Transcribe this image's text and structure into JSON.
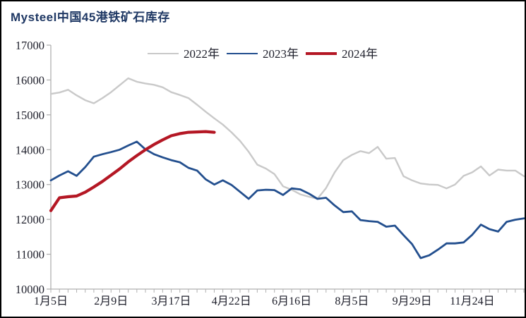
{
  "window": {
    "title": "Mysteel中国45港铁矿石库存"
  },
  "style": {
    "background": "#ffffff",
    "border_color": "#000000",
    "title_color": "#1f3864",
    "axis_color": "#b0b0b0",
    "label_color": "#1d1e2a"
  },
  "chart_data": {
    "type": "line",
    "title": "Mysteel中国45港铁矿石库存",
    "xlabel": "",
    "ylabel": "",
    "ylim": [
      10000,
      17000
    ],
    "y_ticks": [
      "10000",
      "11000",
      "12000",
      "13000",
      "14000",
      "15000",
      "16000",
      "17000"
    ],
    "y_tick_values": [
      10000,
      11000,
      12000,
      13000,
      14000,
      15000,
      16000,
      17000
    ],
    "x_tick_labels": [
      "1月5日",
      "2月9日",
      "3月17日",
      "4月22日",
      "6月16日",
      "8月5日",
      "9月29日",
      "11月24日"
    ],
    "x_tick_indices": [
      0,
      7,
      14,
      21,
      28,
      35,
      42,
      49
    ],
    "n_categories": 56,
    "grid": false,
    "legend_position": "top-center",
    "series": [
      {
        "name": "2022年",
        "color": "#c9c9c9",
        "stroke_width": 2.4,
        "values": [
          15600,
          15640,
          15720,
          15560,
          15420,
          15330,
          15480,
          15650,
          15850,
          16050,
          15950,
          15900,
          15860,
          15790,
          15650,
          15570,
          15480,
          15290,
          15090,
          14900,
          14720,
          14500,
          14250,
          13940,
          13570,
          13460,
          13300,
          12950,
          12850,
          12720,
          12650,
          12590,
          12900,
          13350,
          13700,
          13850,
          13960,
          13900,
          14080,
          13740,
          13760,
          13240,
          13120,
          13030,
          13000,
          12990,
          12890,
          13000,
          13250,
          13350,
          13520,
          13260,
          13430,
          13400,
          13400,
          13240
        ]
      },
      {
        "name": "2023年",
        "color": "#234f8e",
        "stroke_width": 2.8,
        "values": [
          13120,
          13260,
          13380,
          13250,
          13500,
          13800,
          13870,
          13930,
          14000,
          14120,
          14230,
          14010,
          13870,
          13780,
          13700,
          13640,
          13480,
          13400,
          13150,
          13000,
          13120,
          12990,
          12790,
          12590,
          12830,
          12850,
          12840,
          12700,
          12890,
          12860,
          12740,
          12590,
          12620,
          12400,
          12210,
          12230,
          11980,
          11950,
          11930,
          11790,
          11820,
          11550,
          11290,
          10890,
          10970,
          11130,
          11310,
          11310,
          11340,
          11560,
          11850,
          11720,
          11650,
          11930,
          11990,
          12030
        ]
      },
      {
        "name": "2024年",
        "color": "#b41724",
        "stroke_width": 4.2,
        "values": [
          12250,
          12620,
          12650,
          12670,
          12780,
          12930,
          13090,
          13270,
          13450,
          13650,
          13830,
          14000,
          14150,
          14280,
          14400,
          14460,
          14500,
          14510,
          14520,
          14500
        ]
      }
    ]
  }
}
